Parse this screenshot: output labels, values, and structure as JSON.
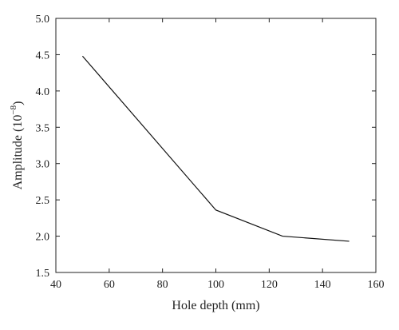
{
  "chart_data": {
    "type": "line",
    "title": "",
    "xlabel": "Hole depth (mm)",
    "ylabel_main": "Amplitude (10",
    "ylabel_exp": "−8",
    "ylabel_close": ")",
    "xlim": [
      40,
      160
    ],
    "ylim": [
      1.5,
      5.0
    ],
    "x_ticks": [
      "40",
      "60",
      "80",
      "100",
      "120",
      "140",
      "160"
    ],
    "y_ticks": [
      "1.5",
      "2.0",
      "2.5",
      "3.0",
      "3.5",
      "4.0",
      "4.5",
      "5.0"
    ],
    "grid": false,
    "series": [
      {
        "x": [
          50,
          100,
          125,
          150
        ],
        "y": [
          4.48,
          2.36,
          2.0,
          1.93
        ],
        "color": "#111111"
      }
    ]
  }
}
